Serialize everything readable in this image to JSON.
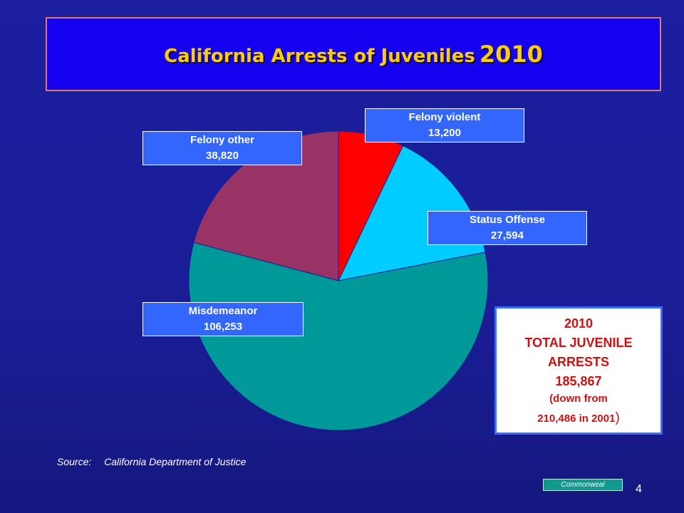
{
  "title": {
    "text": "California Arrests of Juveniles",
    "year": "2010"
  },
  "chart_data": {
    "type": "pie",
    "title": "California Arrests of Juveniles 2010",
    "slices": [
      {
        "label": "Felony violent",
        "value": 13200,
        "display": "13,200",
        "color": "#ff0000"
      },
      {
        "label": "Status Offense",
        "value": 27594,
        "display": "27,594",
        "color": "#00ccff"
      },
      {
        "label": "Misdemeanor",
        "value": 106253,
        "display": "106,253",
        "color": "#009999"
      },
      {
        "label": "Felony other",
        "value": 38820,
        "display": "38,820",
        "color": "#993366"
      }
    ]
  },
  "total": {
    "year": "2010",
    "line1": "TOTAL JUVENILE",
    "line2": "ARRESTS",
    "value": "185,867",
    "note_line1": "(down from",
    "note_line2": "210,486 in 2001",
    "note_close": ")"
  },
  "source": {
    "label": "Source:",
    "text": "California Department of Justice"
  },
  "brand": "Commonweal",
  "page_number": "4"
}
